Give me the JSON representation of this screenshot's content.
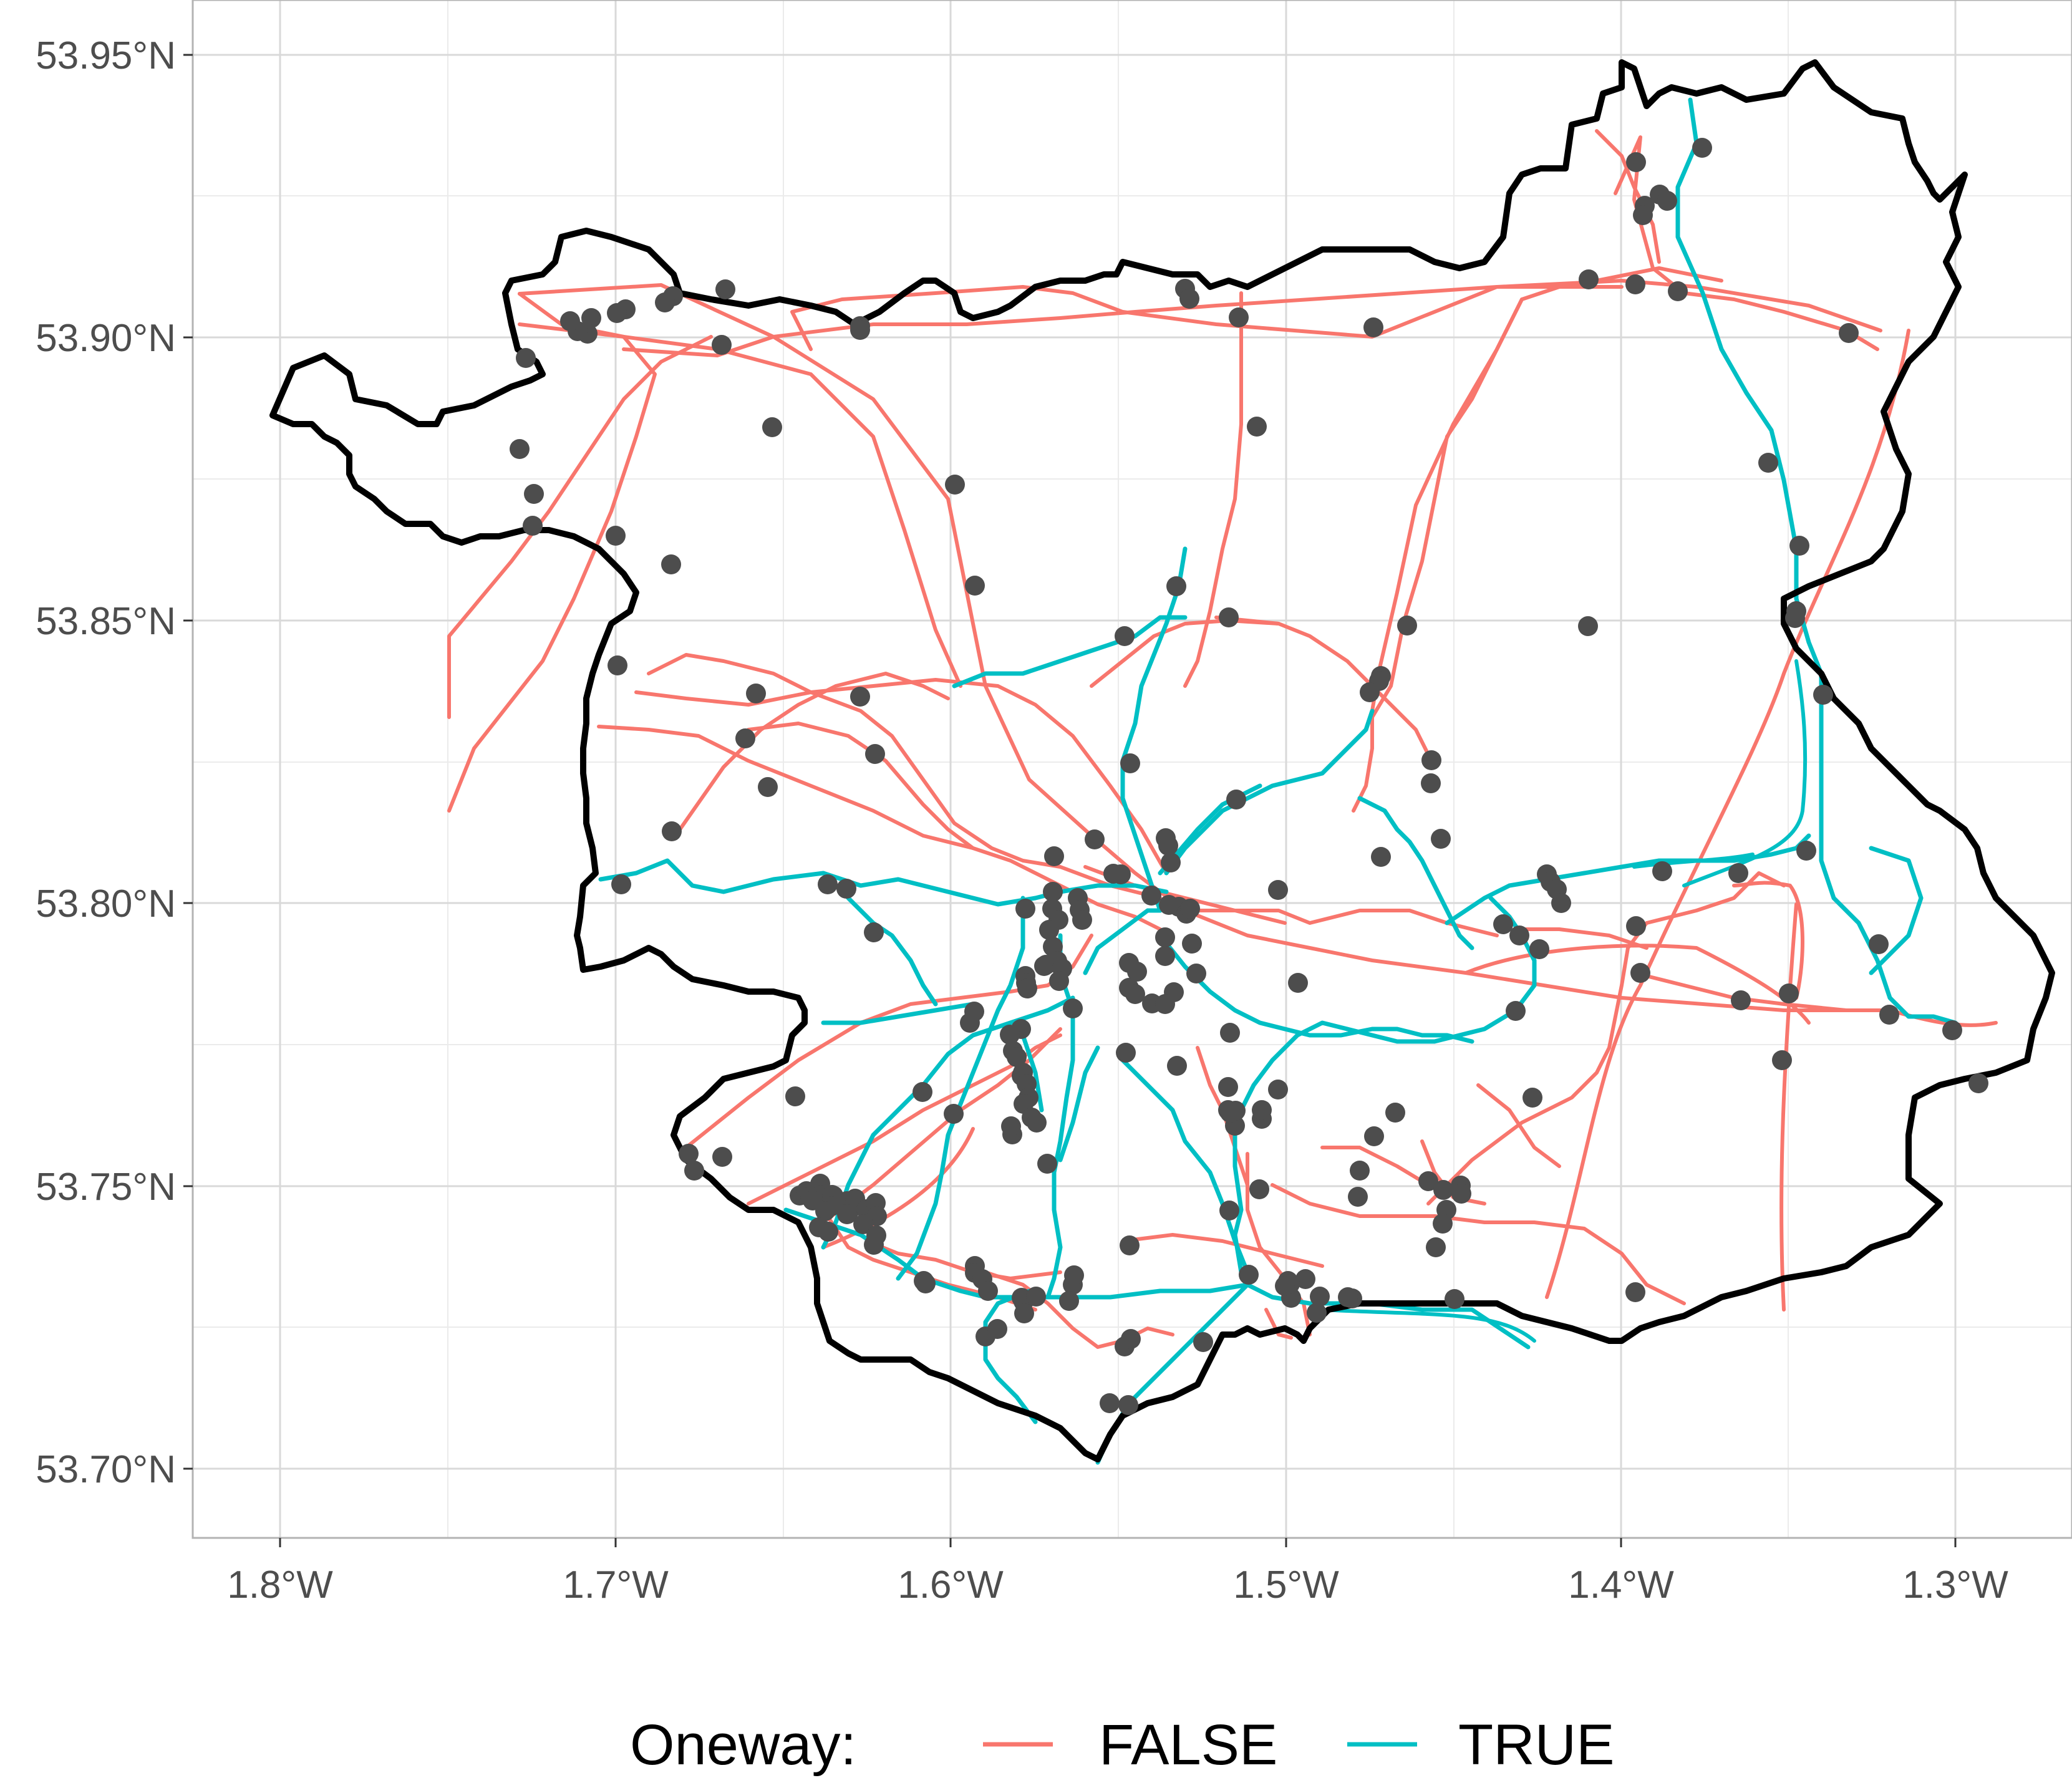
{
  "map": {
    "y_ticks": [
      "53.95°N",
      "53.90°N",
      "53.85°N",
      "53.80°N",
      "53.75°N",
      "53.70°N"
    ],
    "x_ticks": [
      "1.8°W",
      "1.7°W",
      "1.6°W",
      "1.5°W",
      "1.4°W",
      "1.3°W"
    ],
    "lon_range": [
      -1.825,
      -1.265
    ],
    "lat_range": [
      53.6875,
      53.96
    ],
    "grid": true,
    "colors": {
      "false_road": "#f8766d",
      "true_road": "#00bfc4",
      "boundary": "#000000",
      "points": "#4d4d4d",
      "grid": "#d9d9d9",
      "panel_border": "#b3b3b3"
    },
    "legend": {
      "title": "Oneway:",
      "items": [
        {
          "label": "FALSE",
          "color": "#f8766d"
        },
        {
          "label": "TRUE",
          "color": "#00bfc4"
        }
      ],
      "position": "bottom"
    }
  }
}
